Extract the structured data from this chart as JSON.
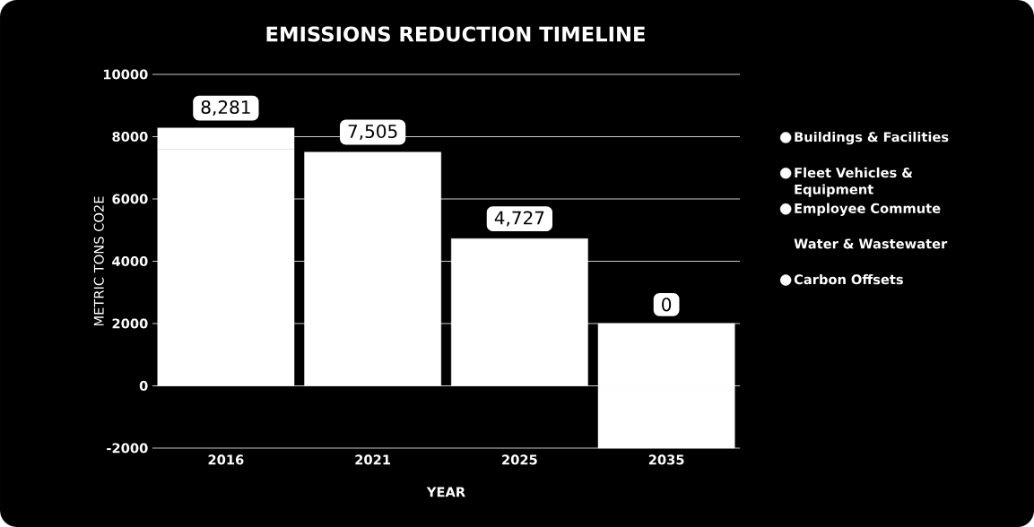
{
  "chart_data": {
    "type": "bar",
    "title": "EMISSIONS REDUCTION TIMELINE",
    "xlabel": "YEAR",
    "ylabel": "METRIC TONS CO2E",
    "categories": [
      "2016",
      "2021",
      "2025",
      "2035"
    ],
    "series": [
      {
        "name": "Buildings & Facilities",
        "color": "#ffffff",
        "values": [
          7600,
          7505,
          4727,
          2000
        ]
      },
      {
        "name": "Fleet Vehicles & Equipment",
        "color": "#ffffff",
        "values": [
          681,
          null,
          null,
          null
        ]
      },
      {
        "name": "Employee Commute",
        "color": "#ffffff",
        "values": [
          null,
          null,
          null,
          null
        ]
      },
      {
        "name": "Water & Wastewater",
        "values": [
          null,
          null,
          null,
          null
        ]
      },
      {
        "name": "Carbon Offsets",
        "color": "#ffffff",
        "values": [
          null,
          null,
          null,
          -2000
        ]
      }
    ],
    "stacked": true,
    "totals": [
      "8,281",
      "7,505",
      "4,727",
      "0"
    ],
    "ylim": [
      -2000,
      10000
    ],
    "yticks": [
      -2000,
      0,
      2000,
      4000,
      6000,
      8000,
      10000
    ],
    "grid": "y",
    "legend": "right"
  }
}
